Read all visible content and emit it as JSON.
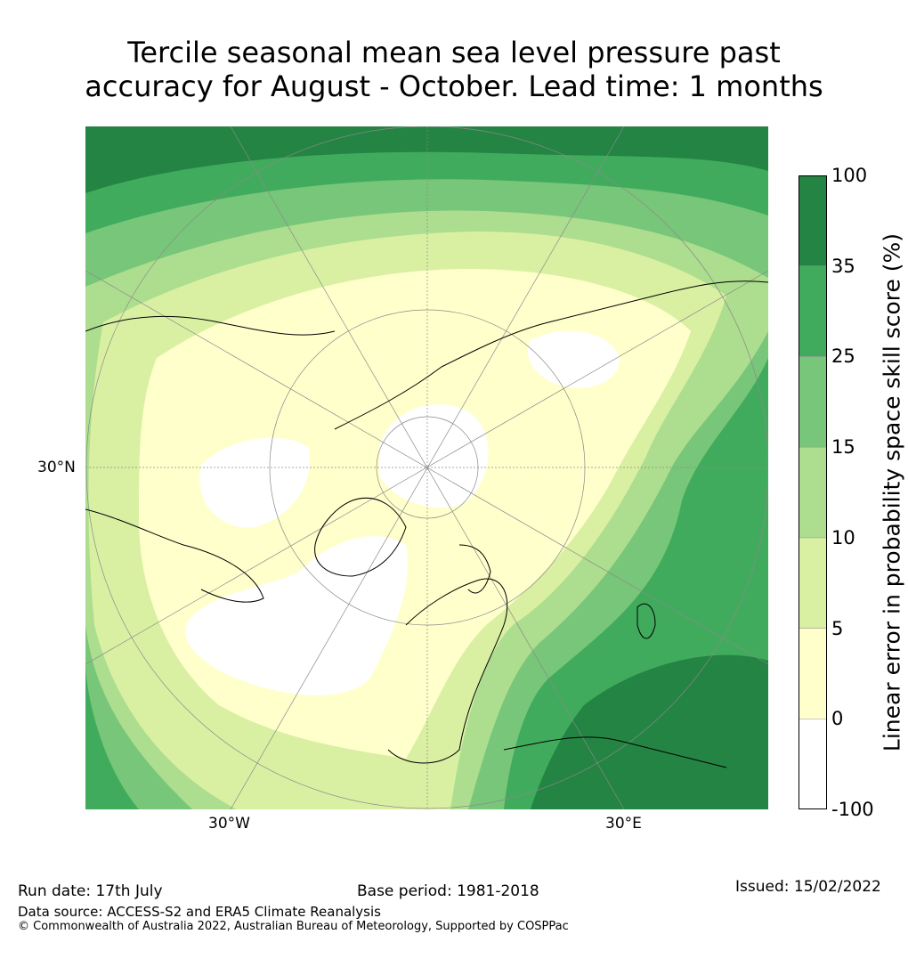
{
  "title_line1": "Tercile seasonal mean sea level pressure past",
  "title_line2": "accuracy for August - October. Lead time: 1 months",
  "map": {
    "projection": "north-polar-stereographic",
    "lat_label": "30°N",
    "lon_labels": [
      "30°W",
      "30°E"
    ]
  },
  "colorbar": {
    "title": "Linear error in probability space skill score (%)",
    "tick_labels": [
      "-100",
      "0",
      "5",
      "10",
      "15",
      "25",
      "35",
      "100"
    ],
    "colors": [
      "#ffffff",
      "#ffffcc",
      "#d9f0a3",
      "#addd8e",
      "#78c679",
      "#41ab5d",
      "#238443"
    ]
  },
  "footer": {
    "run_date": "Run date: 17th July",
    "base_period": "Base period: 1981-2018",
    "issued": "Issued: 15/02/2022",
    "data_source": "Data source: ACCESS-S2 and ERA5 Climate Reanalysis",
    "copyright": "© Commonwealth of Australia 2022, Australian Bureau of Meteorology, Supported by COSPPac"
  }
}
